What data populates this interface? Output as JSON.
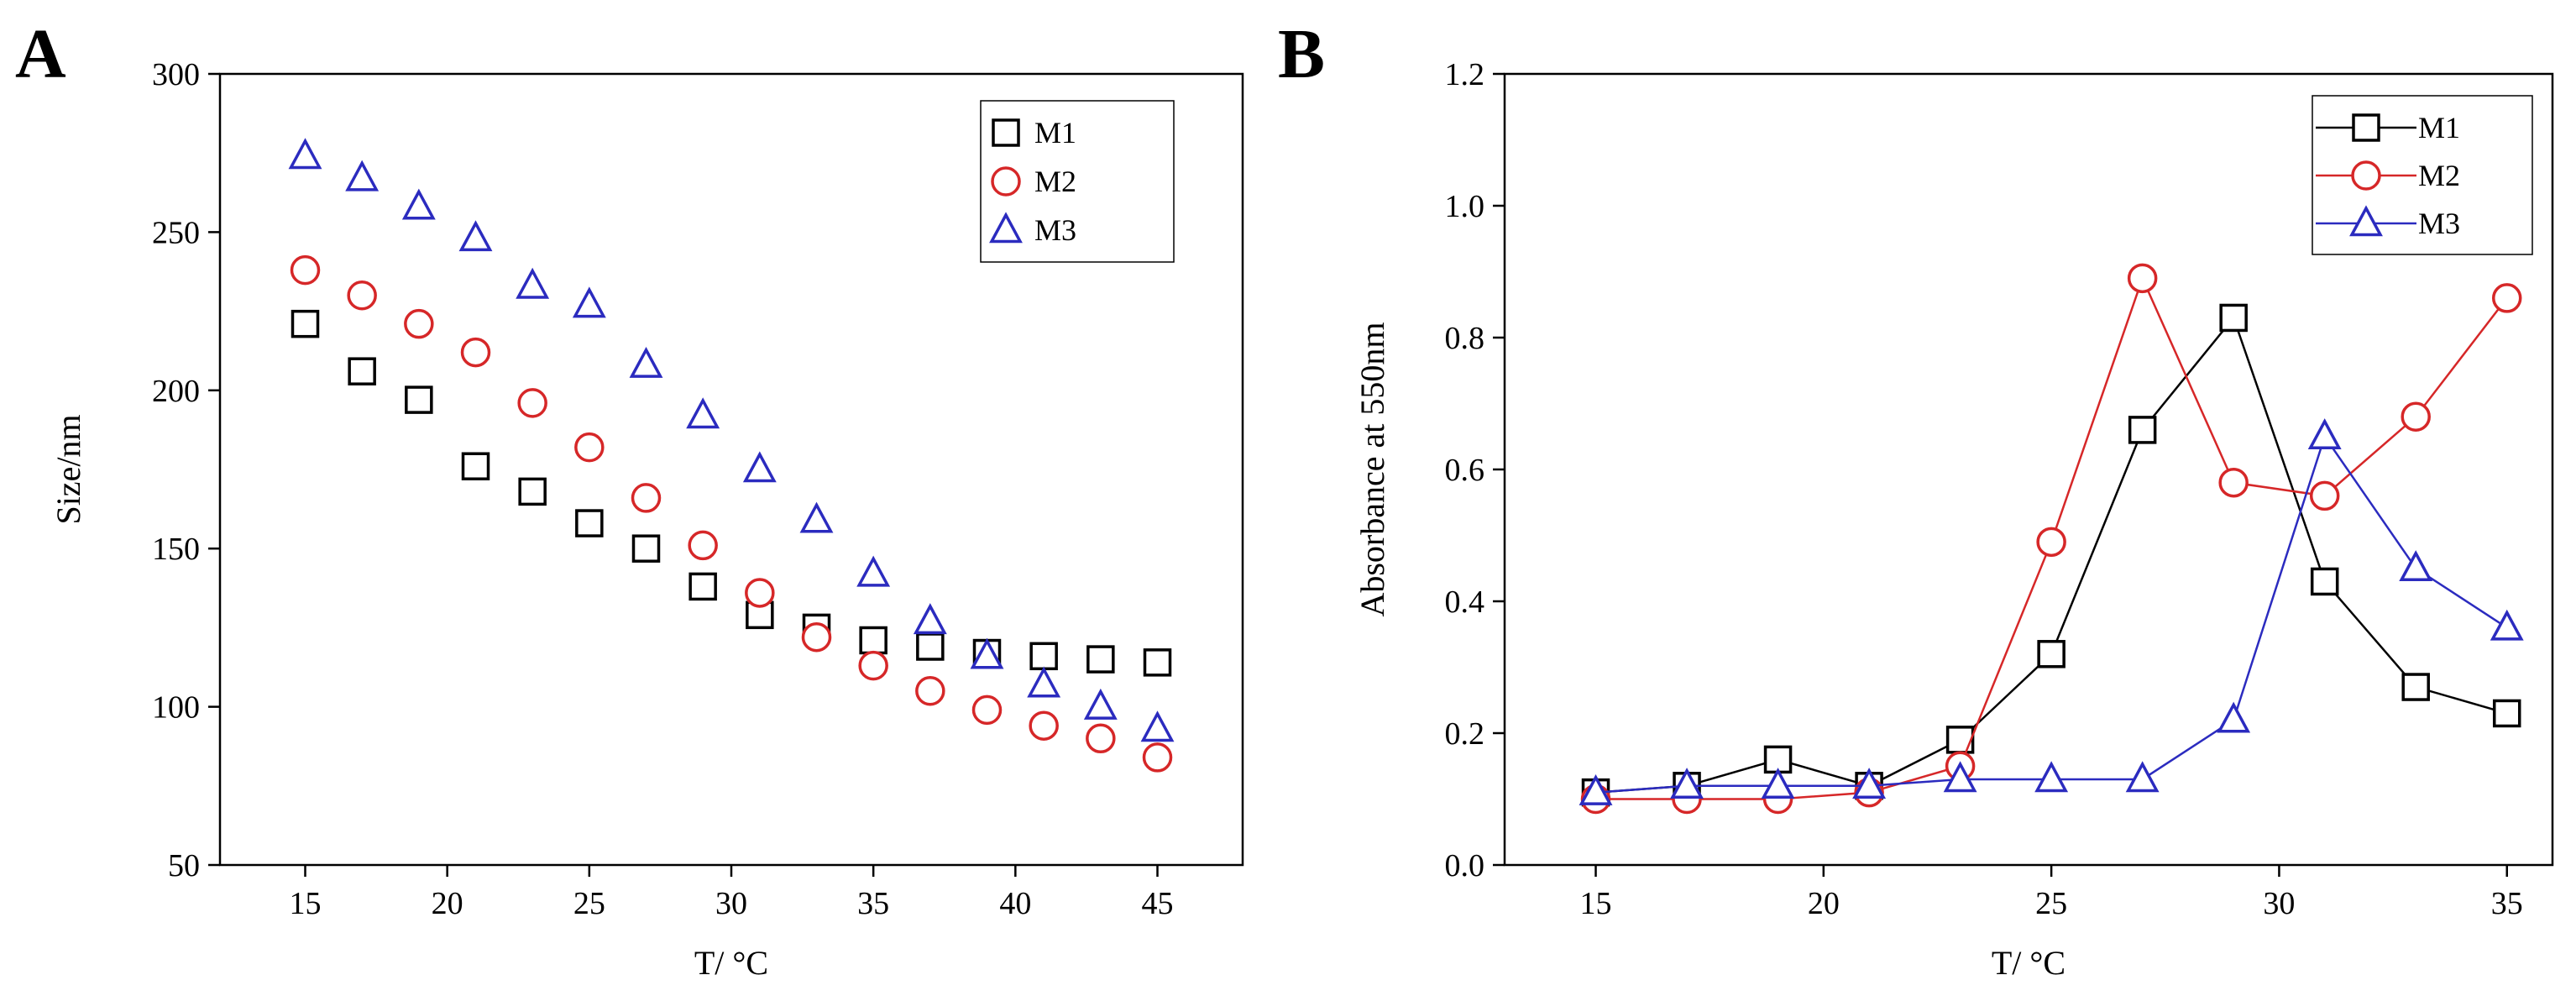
{
  "chart_data": [
    {
      "panel": "A",
      "type": "scatter",
      "xlabel": "T/ °C",
      "ylabel": "Size/nm",
      "xlim": [
        12,
        48
      ],
      "ylim": [
        50,
        300
      ],
      "xticks": [
        15,
        20,
        25,
        30,
        35,
        40,
        45
      ],
      "yticks": [
        50,
        100,
        150,
        200,
        250,
        300
      ],
      "xtick_labels": [
        "15",
        "20",
        "25",
        "30",
        "35",
        "40",
        "45"
      ],
      "ytick_labels": [
        "50",
        "100",
        "150",
        "200",
        "250",
        "300"
      ],
      "legend_position": "top-right",
      "grid": false,
      "x": [
        15,
        17,
        19,
        21,
        23,
        25,
        27,
        29,
        31,
        33,
        35,
        37,
        39,
        41,
        43,
        45
      ],
      "series": [
        {
          "name": "M1",
          "color": "#000000",
          "marker": "square",
          "values": [
            221,
            206,
            197,
            176,
            168,
            158,
            150,
            138,
            129,
            125,
            121,
            119,
            117,
            116,
            115,
            114
          ]
        },
        {
          "name": "M2",
          "color": "#d62728",
          "marker": "circle",
          "values": [
            238,
            230,
            221,
            212,
            196,
            182,
            166,
            151,
            136,
            122,
            113,
            105,
            99,
            94,
            90,
            84
          ]
        },
        {
          "name": "M3",
          "color": "#2b2bbf",
          "marker": "triangle",
          "values": [
            274,
            267,
            258,
            248,
            233,
            227,
            208,
            192,
            175,
            159,
            142,
            127,
            116,
            107,
            100,
            93
          ]
        }
      ]
    },
    {
      "panel": "B",
      "type": "line",
      "xlabel": "T/ °C",
      "ylabel": "Absorbance at 550nm",
      "xlim": [
        13,
        36
      ],
      "ylim": [
        0.0,
        1.2
      ],
      "xticks": [
        15,
        20,
        25,
        30,
        35
      ],
      "yticks": [
        0.0,
        0.2,
        0.4,
        0.6,
        0.8,
        1.0,
        1.2
      ],
      "xtick_labels": [
        "15",
        "20",
        "25",
        "30",
        "35"
      ],
      "ytick_labels": [
        "0.0",
        "0.2",
        "0.4",
        "0.6",
        "0.8",
        "1.0",
        "1.2"
      ],
      "legend_position": "top-right",
      "grid": false,
      "x": [
        15,
        17,
        19,
        21,
        23,
        25,
        27,
        29,
        31,
        33,
        35
      ],
      "series": [
        {
          "name": "M1",
          "color": "#000000",
          "marker": "square",
          "values": [
            0.11,
            0.12,
            0.16,
            0.12,
            0.19,
            0.32,
            0.66,
            0.83,
            0.43,
            0.27,
            0.23
          ]
        },
        {
          "name": "M2",
          "color": "#d62728",
          "marker": "circle",
          "values": [
            0.1,
            0.1,
            0.1,
            0.11,
            0.15,
            0.49,
            0.89,
            0.58,
            0.56,
            0.68,
            0.86
          ]
        },
        {
          "name": "M3",
          "color": "#2b2bbf",
          "marker": "triangle",
          "values": [
            0.11,
            0.12,
            0.12,
            0.12,
            0.13,
            0.13,
            0.13,
            0.22,
            0.65,
            0.45,
            0.36
          ]
        }
      ]
    }
  ]
}
